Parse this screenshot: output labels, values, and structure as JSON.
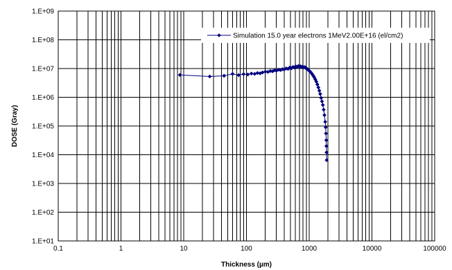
{
  "chart_data": {
    "type": "scatter",
    "title": "",
    "xlabel": "Thickness (µm)",
    "ylabel": "DOSE (Gray)",
    "x_scale": "log",
    "y_scale": "log",
    "xlim": [
      0.1,
      100000
    ],
    "ylim": [
      10,
      1000000000
    ],
    "x_ticks": [
      0.1,
      1,
      10,
      100,
      1000,
      10000,
      100000
    ],
    "x_tick_labels": [
      "0.1",
      "1",
      "10",
      "100",
      "1000",
      "10000",
      "100000"
    ],
    "y_ticks": [
      10,
      100,
      1000,
      10000,
      100000,
      1000000,
      10000000,
      100000000,
      1000000000
    ],
    "y_tick_labels": [
      "1.E+01",
      "1.E+02",
      "1.E+03",
      "1.E+04",
      "1.E+05",
      "1.E+06",
      "1.E+07",
      "1.E+08",
      "1.E+09"
    ],
    "grid": true,
    "legend_position": "top-right",
    "series": [
      {
        "name": "Simulation 15.0 year electrons 1MeV2.00E+16 (el/cm2)",
        "color": "#000080",
        "marker": "diamond",
        "x": [
          8.7,
          26,
          44,
          60,
          75,
          90,
          105,
          120,
          135,
          150,
          165,
          180,
          200,
          220,
          240,
          260,
          280,
          300,
          325,
          350,
          375,
          400,
          430,
          460,
          490,
          520,
          550,
          580,
          610,
          640,
          670,
          700,
          730,
          760,
          790,
          820,
          850,
          880,
          910,
          940,
          970,
          1000,
          1050,
          1100,
          1150,
          1200,
          1250,
          1300,
          1350,
          1400,
          1450,
          1500,
          1550,
          1600,
          1650,
          1700,
          1750,
          1800,
          1830,
          1850,
          1870,
          1880,
          1890,
          1900
        ],
        "y": [
          6000000,
          5300000,
          5600000,
          6500000,
          5900000,
          6400000,
          6200000,
          6700000,
          6500000,
          7000000,
          6800000,
          7300000,
          7800000,
          7600000,
          8200000,
          8000000,
          8700000,
          8400000,
          9100000,
          8800000,
          9500000,
          9300000,
          10100000,
          9700000,
          10800000,
          10200000,
          11300000,
          10800000,
          11900000,
          11200000,
          12200000,
          11500000,
          12000000,
          11300000,
          11700000,
          11000000,
          11200000,
          10400000,
          10100000,
          9500000,
          9000000,
          8400000,
          7600000,
          6700000,
          5800000,
          5000000,
          4200000,
          3500000,
          2800000,
          2200000,
          1700000,
          1300000,
          950000,
          720000,
          540000,
          370000,
          240000,
          140000,
          90000,
          55000,
          32000,
          20000,
          12000,
          6500
        ]
      }
    ]
  }
}
